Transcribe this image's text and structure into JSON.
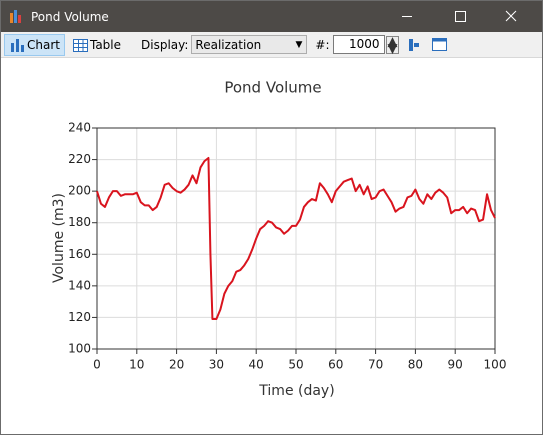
{
  "window": {
    "title": "Pond Volume"
  },
  "toolbar": {
    "chart_button": "Chart",
    "table_button": "Table",
    "display_label": "Display:",
    "display_value": "Realization",
    "number_label": "#:",
    "number_value": "1000"
  },
  "chart_data": {
    "type": "line",
    "title": "Pond Volume",
    "x_label": "Time (day)",
    "y_label": "Volume (m3)",
    "color": "#d9141e",
    "grid": true,
    "xlim": [
      0,
      100
    ],
    "xticks": [
      0,
      10,
      20,
      30,
      40,
      50,
      60,
      70,
      80,
      90,
      100
    ],
    "ylim": [
      100,
      240
    ],
    "yticks": [
      100,
      120,
      140,
      160,
      180,
      200,
      220,
      240
    ],
    "x": [
      0,
      1,
      2,
      3,
      4,
      5,
      6,
      7,
      8,
      9,
      10,
      11,
      12,
      13,
      14,
      15,
      16,
      17,
      18,
      19,
      20,
      21,
      22,
      23,
      24,
      25,
      26,
      27,
      28,
      28.5,
      29,
      30,
      31,
      32,
      33,
      34,
      35,
      36,
      37,
      38,
      39,
      40,
      41,
      42,
      43,
      44,
      45,
      46,
      47,
      48,
      49,
      50,
      51,
      52,
      53,
      54,
      55,
      56,
      57,
      58,
      59,
      60,
      61,
      62,
      63,
      64,
      65,
      66,
      67,
      68,
      69,
      70,
      71,
      72,
      73,
      74,
      75,
      76,
      77,
      78,
      79,
      80,
      81,
      82,
      83,
      84,
      85,
      86,
      87,
      88,
      89,
      90,
      91,
      92,
      93,
      94,
      95,
      96,
      97,
      98,
      99,
      100
    ],
    "values": [
      200,
      192,
      190,
      196,
      200,
      200,
      197,
      198,
      198,
      198,
      199,
      193,
      191,
      191,
      188,
      190,
      196,
      204,
      205,
      202,
      200,
      199,
      201,
      204,
      210,
      205,
      215,
      219,
      221,
      160,
      119,
      119,
      125,
      135,
      140,
      143,
      149,
      150,
      153,
      157,
      163,
      170,
      176,
      178,
      181,
      180,
      177,
      176,
      173,
      175,
      178,
      178,
      182,
      190,
      193,
      195,
      194,
      205,
      202,
      198,
      193,
      200,
      203,
      206,
      207,
      208,
      200,
      204,
      198,
      203,
      195,
      196,
      200,
      201,
      197,
      193,
      187,
      189,
      190,
      196,
      197,
      201,
      195,
      192,
      198,
      195,
      199,
      201,
      199,
      196,
      186,
      188,
      188,
      190,
      186,
      189,
      188,
      181,
      182,
      198,
      188,
      183
    ]
  }
}
